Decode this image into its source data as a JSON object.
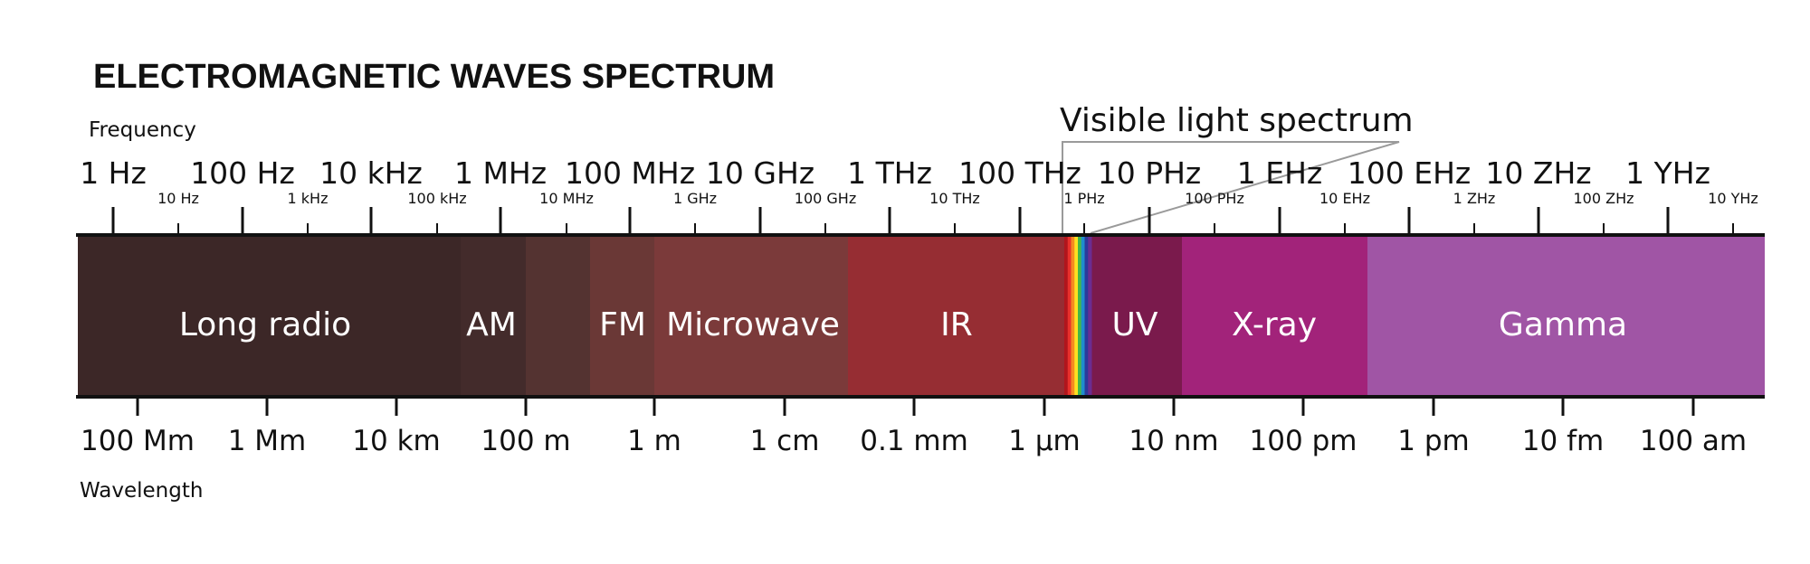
{
  "title": "ELECTROMAGNETIC WAVES SPECTRUM",
  "frequency_label": "Frequency",
  "wavelength_label": "Wavelength",
  "visible_light_label": "Visible light spectrum",
  "frequency_major_ticks": [
    "1 Hz",
    "100 Hz",
    "10 kHz",
    "1 MHz",
    "100 MHz",
    "10 GHz",
    "1 THz",
    "100 THz",
    "10 PHz",
    "1 EHz",
    "100 EHz",
    "10 ZHz",
    "1 YHz"
  ],
  "frequency_minor_ticks": [
    "10 Hz",
    "1 kHz",
    "100 kHz",
    "10 MHz",
    "1 GHz",
    "100 GHz",
    "10 THz",
    "1 PHz",
    "100 PHz",
    "10 EHz",
    "1 ZHz",
    "100 ZHz",
    "10 YHz"
  ],
  "wavelength_ticks": [
    "100  Mm",
    "1 Mm",
    "10 km",
    "100 m",
    "1 m",
    "1 cm",
    "0.1 mm",
    "1 μm",
    "10 nm",
    "100 pm",
    "1 pm",
    "10 fm",
    "100 am"
  ],
  "bands": [
    {
      "name": "Long radio",
      "color": "#3c2727"
    },
    {
      "name": "AM",
      "color": "#432b2b"
    },
    {
      "name": "",
      "color": "#543331"
    },
    {
      "name": "FM",
      "color": "#6a3836"
    },
    {
      "name": "Microwave",
      "color": "#7b3a3a"
    },
    {
      "name": "IR",
      "color": "#962d33"
    },
    {
      "name": "",
      "color": "#ffffff"
    },
    {
      "name": "UV",
      "color": "#7a1a4c"
    },
    {
      "name": "X-ray",
      "color": "#a2237a"
    },
    {
      "name": "Gamma",
      "color": "#a055a5"
    }
  ],
  "visible_spectrum_colors": [
    "#b1151d",
    "#e8312c",
    "#f58a20",
    "#fde021",
    "#43b649",
    "#1f8ecd",
    "#2b3b9a",
    "#6b2c91"
  ]
}
